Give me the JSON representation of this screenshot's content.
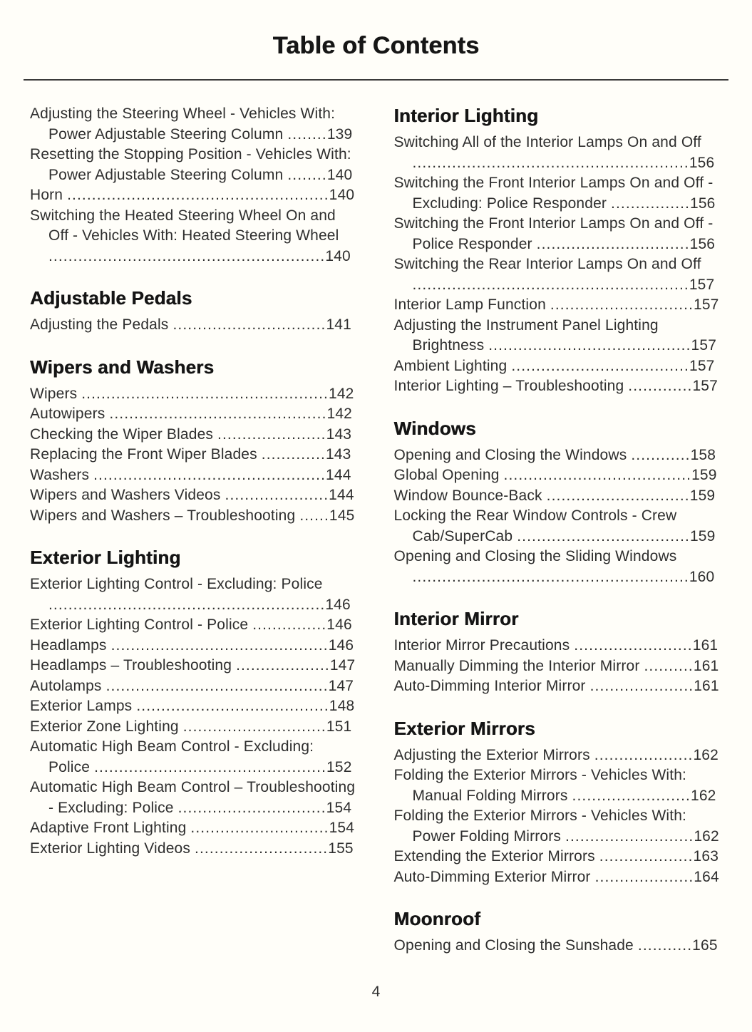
{
  "page": {
    "title": "Table of Contents",
    "number": "4"
  },
  "colors": {
    "background": "#fffef9",
    "heading_text": "#151515",
    "body_text": "#2e2e2e",
    "rule": "#3a3a3a"
  },
  "left_column": {
    "sections": [
      {
        "heading": null,
        "entries": [
          {
            "label": "Adjusting the Steering Wheel - Vehicles With: Power Adjustable Steering Column",
            "page": "139"
          },
          {
            "label": "Resetting the Stopping Position - Vehicles With: Power Adjustable Steering Column",
            "page": "140"
          },
          {
            "label": "Horn",
            "page": "140"
          },
          {
            "label": "Switching the Heated Steering Wheel On and Off - Vehicles With: Heated Steering Wheel",
            "page": "140"
          }
        ]
      },
      {
        "heading": "Adjustable Pedals",
        "entries": [
          {
            "label": "Adjusting the Pedals",
            "page": "141"
          }
        ]
      },
      {
        "heading": "Wipers and Washers",
        "entries": [
          {
            "label": "Wipers",
            "page": "142"
          },
          {
            "label": "Autowipers",
            "page": "142"
          },
          {
            "label": "Checking the Wiper Blades",
            "page": "143"
          },
          {
            "label": "Replacing the Front Wiper Blades",
            "page": "143"
          },
          {
            "label": "Washers",
            "page": "144"
          },
          {
            "label": "Wipers and Washers Videos",
            "page": "144"
          },
          {
            "label": "Wipers and Washers – Troubleshooting",
            "page": "145"
          }
        ]
      },
      {
        "heading": "Exterior Lighting",
        "entries": [
          {
            "label": "Exterior Lighting Control - Excluding: Police",
            "page": "146"
          },
          {
            "label": "Exterior Lighting Control - Police",
            "page": "146"
          },
          {
            "label": "Headlamps",
            "page": "146"
          },
          {
            "label": "Headlamps – Troubleshooting",
            "page": "147"
          },
          {
            "label": "Autolamps",
            "page": "147"
          },
          {
            "label": "Exterior Lamps",
            "page": "148"
          },
          {
            "label": "Exterior Zone Lighting",
            "page": "151"
          },
          {
            "label": "Automatic High Beam Control - Excluding: Police",
            "page": "152"
          },
          {
            "label": "Automatic High Beam Control – Troubleshooting - Excluding: Police",
            "page": "154"
          },
          {
            "label": "Adaptive Front Lighting",
            "page": "154"
          },
          {
            "label": "Exterior Lighting Videos",
            "page": "155"
          }
        ]
      }
    ]
  },
  "right_column": {
    "sections": [
      {
        "heading": "Interior Lighting",
        "entries": [
          {
            "label": "Switching All of the Interior Lamps On and Off",
            "page": "156"
          },
          {
            "label": "Switching the Front Interior Lamps On and Off - Excluding: Police Responder",
            "page": "156"
          },
          {
            "label": "Switching the Front Interior Lamps On and Off - Police Responder",
            "page": "156"
          },
          {
            "label": "Switching the Rear Interior Lamps On and Off",
            "page": "157"
          },
          {
            "label": "Interior Lamp Function",
            "page": "157"
          },
          {
            "label": "Adjusting the Instrument Panel Lighting Brightness",
            "page": "157"
          },
          {
            "label": "Ambient Lighting",
            "page": "157"
          },
          {
            "label": "Interior Lighting – Troubleshooting",
            "page": "157"
          }
        ]
      },
      {
        "heading": "Windows",
        "entries": [
          {
            "label": "Opening and Closing the Windows",
            "page": "158"
          },
          {
            "label": "Global Opening",
            "page": "159"
          },
          {
            "label": "Window Bounce-Back",
            "page": "159"
          },
          {
            "label": "Locking the Rear Window Controls - Crew Cab/SuperCab",
            "page": "159"
          },
          {
            "label": "Opening and Closing the Sliding Windows",
            "page": "160"
          }
        ]
      },
      {
        "heading": "Interior Mirror",
        "entries": [
          {
            "label": "Interior Mirror Precautions",
            "page": "161"
          },
          {
            "label": "Manually Dimming the Interior Mirror",
            "page": "161"
          },
          {
            "label": "Auto-Dimming Interior Mirror",
            "page": "161"
          }
        ]
      },
      {
        "heading": "Exterior Mirrors",
        "entries": [
          {
            "label": "Adjusting the Exterior Mirrors",
            "page": "162"
          },
          {
            "label": "Folding the Exterior Mirrors - Vehicles With: Manual Folding Mirrors",
            "page": "162"
          },
          {
            "label": "Folding the Exterior Mirrors - Vehicles With: Power Folding Mirrors",
            "page": "162"
          },
          {
            "label": "Extending the Exterior Mirrors",
            "page": "163"
          },
          {
            "label": "Auto-Dimming Exterior Mirror",
            "page": "164"
          }
        ]
      },
      {
        "heading": "Moonroof",
        "entries": [
          {
            "label": "Opening and Closing the Sunshade",
            "page": "165"
          }
        ]
      }
    ]
  }
}
